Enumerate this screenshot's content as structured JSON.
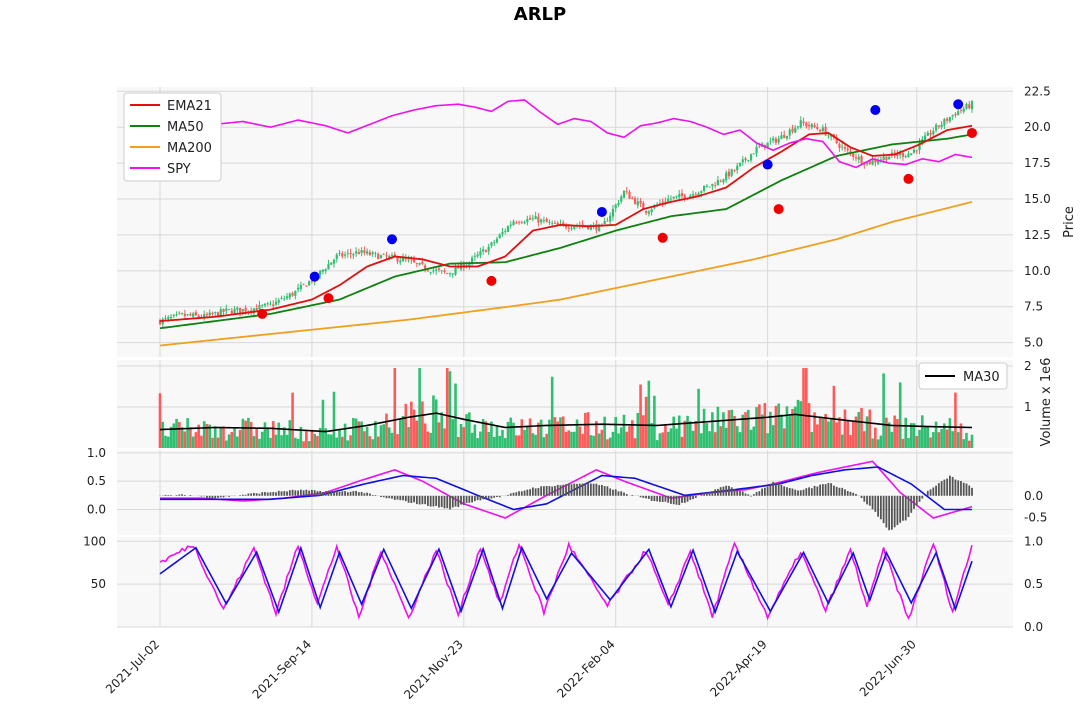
{
  "chart_data": {
    "type": "candlestick-financial",
    "title": "ARLP",
    "x_tick_labels": [
      "2021-Jul-02",
      "2021-Sep-14",
      "2021-Nov-23",
      "2022-Feb-04",
      "2022-Apr-19",
      "2022-Jun-30"
    ],
    "price_panel": {
      "ylabel": "Price",
      "ylim": [
        4.0,
        22.8
      ],
      "yticks": [
        5.0,
        7.5,
        10.0,
        12.5,
        15.0,
        17.5,
        20.0,
        22.5
      ],
      "legend": [
        "EMA21",
        "MA50",
        "MA200",
        "SPY"
      ],
      "colors": {
        "EMA21": "#e01010",
        "MA50": "#108010",
        "MA200": "#f0a020",
        "SPY": "#ee10ee",
        "up": "#2fbf71",
        "down": "#ff5a5a"
      },
      "close_anchors": [
        [
          0,
          6.5
        ],
        [
          8,
          6.9
        ],
        [
          16,
          6.8
        ],
        [
          24,
          7.2
        ],
        [
          32,
          7.3
        ],
        [
          40,
          7.6
        ],
        [
          48,
          8.4
        ],
        [
          56,
          9.5
        ],
        [
          64,
          11.0
        ],
        [
          72,
          11.3
        ],
        [
          80,
          11.0
        ],
        [
          88,
          10.8
        ],
        [
          96,
          10.2
        ],
        [
          104,
          9.8
        ],
        [
          112,
          10.6
        ],
        [
          120,
          11.8
        ],
        [
          128,
          13.5
        ],
        [
          136,
          13.6
        ],
        [
          144,
          13.1
        ],
        [
          152,
          13.2
        ],
        [
          160,
          13.0
        ],
        [
          168,
          15.5
        ],
        [
          176,
          14.2
        ],
        [
          184,
          15.0
        ],
        [
          192,
          15.3
        ],
        [
          200,
          16.0
        ],
        [
          208,
          17.0
        ],
        [
          216,
          18.5
        ],
        [
          224,
          19.2
        ],
        [
          232,
          20.3
        ],
        [
          240,
          19.8
        ],
        [
          248,
          18.4
        ],
        [
          256,
          17.5
        ],
        [
          264,
          18.0
        ],
        [
          272,
          18.2
        ],
        [
          280,
          19.8
        ],
        [
          288,
          21.0
        ],
        [
          294,
          21.6
        ]
      ],
      "EMA21": [
        [
          0,
          6.5
        ],
        [
          20,
          6.8
        ],
        [
          40,
          7.3
        ],
        [
          55,
          8.0
        ],
        [
          65,
          9.0
        ],
        [
          75,
          10.3
        ],
        [
          85,
          11.0
        ],
        [
          95,
          10.8
        ],
        [
          105,
          10.3
        ],
        [
          115,
          10.3
        ],
        [
          125,
          11.0
        ],
        [
          135,
          12.8
        ],
        [
          145,
          13.2
        ],
        [
          155,
          13.1
        ],
        [
          165,
          13.2
        ],
        [
          175,
          14.3
        ],
        [
          185,
          14.8
        ],
        [
          195,
          15.2
        ],
        [
          205,
          15.8
        ],
        [
          215,
          17.2
        ],
        [
          225,
          18.3
        ],
        [
          235,
          19.5
        ],
        [
          242,
          19.6
        ],
        [
          250,
          18.6
        ],
        [
          258,
          18.0
        ],
        [
          266,
          18.1
        ],
        [
          275,
          18.8
        ],
        [
          285,
          19.8
        ],
        [
          294,
          20.1
        ]
      ],
      "MA50": [
        [
          0,
          6.0
        ],
        [
          40,
          7.0
        ],
        [
          65,
          8.0
        ],
        [
          85,
          9.6
        ],
        [
          105,
          10.5
        ],
        [
          125,
          10.6
        ],
        [
          145,
          11.6
        ],
        [
          165,
          12.8
        ],
        [
          185,
          13.8
        ],
        [
          205,
          14.3
        ],
        [
          225,
          16.3
        ],
        [
          245,
          18.0
        ],
        [
          265,
          18.8
        ],
        [
          285,
          19.2
        ],
        [
          294,
          19.5
        ]
      ],
      "MA200": [
        [
          0,
          4.8
        ],
        [
          50,
          5.8
        ],
        [
          90,
          6.6
        ],
        [
          130,
          7.6
        ],
        [
          145,
          8.0
        ],
        [
          185,
          9.6
        ],
        [
          215,
          10.8
        ],
        [
          245,
          12.2
        ],
        [
          265,
          13.4
        ],
        [
          294,
          14.8
        ]
      ],
      "SPY": [
        [
          0,
          20.1
        ],
        [
          10,
          20.0
        ],
        [
          20,
          20.2
        ],
        [
          30,
          20.4
        ],
        [
          40,
          20.0
        ],
        [
          50,
          20.5
        ],
        [
          60,
          20.1
        ],
        [
          68,
          19.6
        ],
        [
          76,
          20.2
        ],
        [
          84,
          20.8
        ],
        [
          92,
          21.2
        ],
        [
          100,
          21.5
        ],
        [
          108,
          21.6
        ],
        [
          114,
          21.4
        ],
        [
          120,
          21.1
        ],
        [
          126,
          21.8
        ],
        [
          132,
          21.9
        ],
        [
          138,
          21.0
        ],
        [
          144,
          20.2
        ],
        [
          150,
          20.6
        ],
        [
          156,
          20.4
        ],
        [
          162,
          19.6
        ],
        [
          168,
          19.3
        ],
        [
          174,
          20.1
        ],
        [
          180,
          20.3
        ],
        [
          186,
          20.6
        ],
        [
          192,
          20.4
        ],
        [
          198,
          20.0
        ],
        [
          204,
          19.5
        ],
        [
          210,
          19.8
        ],
        [
          216,
          18.9
        ],
        [
          222,
          18.4
        ],
        [
          228,
          18.9
        ],
        [
          234,
          19.2
        ],
        [
          240,
          19.0
        ],
        [
          246,
          17.6
        ],
        [
          252,
          17.2
        ],
        [
          258,
          17.8
        ],
        [
          264,
          17.5
        ],
        [
          270,
          17.4
        ],
        [
          276,
          17.8
        ],
        [
          282,
          17.6
        ],
        [
          288,
          18.1
        ],
        [
          294,
          17.9
        ]
      ],
      "blue_markers": [
        [
          56,
          9.6
        ],
        [
          84,
          12.2
        ],
        [
          160,
          14.1
        ],
        [
          220,
          17.4
        ],
        [
          259,
          21.2
        ],
        [
          289,
          21.6
        ]
      ],
      "red_markers": [
        [
          37,
          7.0
        ],
        [
          61,
          8.1
        ],
        [
          120,
          9.3
        ],
        [
          182,
          12.3
        ],
        [
          224,
          14.3
        ],
        [
          271,
          16.4
        ],
        [
          294,
          19.6
        ]
      ]
    },
    "volume_panel": {
      "ylabel": "Volume x 1e6",
      "ylim": [
        0,
        2.0
      ],
      "yticks": [
        1,
        2
      ],
      "legend": [
        "MA30"
      ],
      "MA30": [
        [
          0,
          0.45
        ],
        [
          20,
          0.5
        ],
        [
          40,
          0.48
        ],
        [
          60,
          0.4
        ],
        [
          75,
          0.55
        ],
        [
          90,
          0.75
        ],
        [
          100,
          0.85
        ],
        [
          110,
          0.7
        ],
        [
          125,
          0.5
        ],
        [
          140,
          0.55
        ],
        [
          160,
          0.58
        ],
        [
          180,
          0.55
        ],
        [
          200,
          0.65
        ],
        [
          220,
          0.75
        ],
        [
          230,
          0.82
        ],
        [
          245,
          0.7
        ],
        [
          265,
          0.55
        ],
        [
          280,
          0.52
        ],
        [
          294,
          0.5
        ]
      ]
    },
    "macd_panel": {
      "left_yticks": [
        0.0,
        0.5,
        1.0
      ],
      "left_ylim": [
        -0.45,
        1.05
      ],
      "right_yticks": [
        -0.5,
        0.0
      ],
      "right_ylim": [
        -0.9,
        1.05
      ],
      "macd": [
        [
          0,
          0.2
        ],
        [
          15,
          0.2
        ],
        [
          30,
          0.15
        ],
        [
          45,
          0.2
        ],
        [
          60,
          0.3
        ],
        [
          72,
          0.5
        ],
        [
          85,
          0.7
        ],
        [
          95,
          0.5
        ],
        [
          110,
          0.1
        ],
        [
          125,
          -0.15
        ],
        [
          140,
          0.25
        ],
        [
          158,
          0.7
        ],
        [
          168,
          0.5
        ],
        [
          185,
          0.2
        ],
        [
          200,
          0.3
        ],
        [
          212,
          0.35
        ],
        [
          222,
          0.45
        ],
        [
          230,
          0.55
        ],
        [
          238,
          0.65
        ],
        [
          248,
          0.75
        ],
        [
          258,
          0.85
        ],
        [
          268,
          0.3
        ],
        [
          280,
          -0.15
        ],
        [
          294,
          0.05
        ]
      ],
      "signal": [
        [
          0,
          0.18
        ],
        [
          20,
          0.18
        ],
        [
          40,
          0.18
        ],
        [
          58,
          0.25
        ],
        [
          74,
          0.45
        ],
        [
          88,
          0.6
        ],
        [
          100,
          0.55
        ],
        [
          115,
          0.25
        ],
        [
          128,
          0.0
        ],
        [
          140,
          0.1
        ],
        [
          160,
          0.6
        ],
        [
          172,
          0.55
        ],
        [
          190,
          0.25
        ],
        [
          208,
          0.35
        ],
        [
          224,
          0.45
        ],
        [
          236,
          0.6
        ],
        [
          248,
          0.7
        ],
        [
          260,
          0.75
        ],
        [
          272,
          0.45
        ],
        [
          284,
          0.0
        ],
        [
          294,
          0.0
        ]
      ],
      "histogram_anchors": [
        [
          0,
          0.0
        ],
        [
          10,
          0.02
        ],
        [
          20,
          -0.05
        ],
        [
          35,
          0.06
        ],
        [
          50,
          0.13
        ],
        [
          60,
          0.1
        ],
        [
          72,
          0.1
        ],
        [
          80,
          -0.03
        ],
        [
          95,
          -0.2
        ],
        [
          105,
          -0.3
        ],
        [
          115,
          -0.1
        ],
        [
          125,
          0.0
        ],
        [
          135,
          0.18
        ],
        [
          145,
          0.25
        ],
        [
          155,
          0.3
        ],
        [
          162,
          0.2
        ],
        [
          170,
          0.02
        ],
        [
          178,
          -0.1
        ],
        [
          188,
          -0.2
        ],
        [
          196,
          0.02
        ],
        [
          205,
          0.25
        ],
        [
          214,
          0.0
        ],
        [
          222,
          0.3
        ],
        [
          232,
          0.12
        ],
        [
          242,
          0.3
        ],
        [
          252,
          0.05
        ],
        [
          258,
          -0.3
        ],
        [
          264,
          -0.8
        ],
        [
          270,
          -0.55
        ],
        [
          278,
          0.1
        ],
        [
          286,
          0.45
        ],
        [
          294,
          0.2
        ]
      ]
    },
    "stochastic_panel": {
      "left_yticks": [
        50,
        100
      ],
      "left_ylim": [
        0,
        105
      ],
      "right_yticks": [
        0.0,
        0.5,
        1.0
      ],
      "right_ylim": [
        0,
        1.05
      ],
      "cycle_peaks": [
        12,
        34,
        50,
        64,
        80,
        100,
        116,
        130,
        148,
        176,
        192,
        208,
        232,
        250,
        262,
        280,
        294
      ]
    }
  }
}
